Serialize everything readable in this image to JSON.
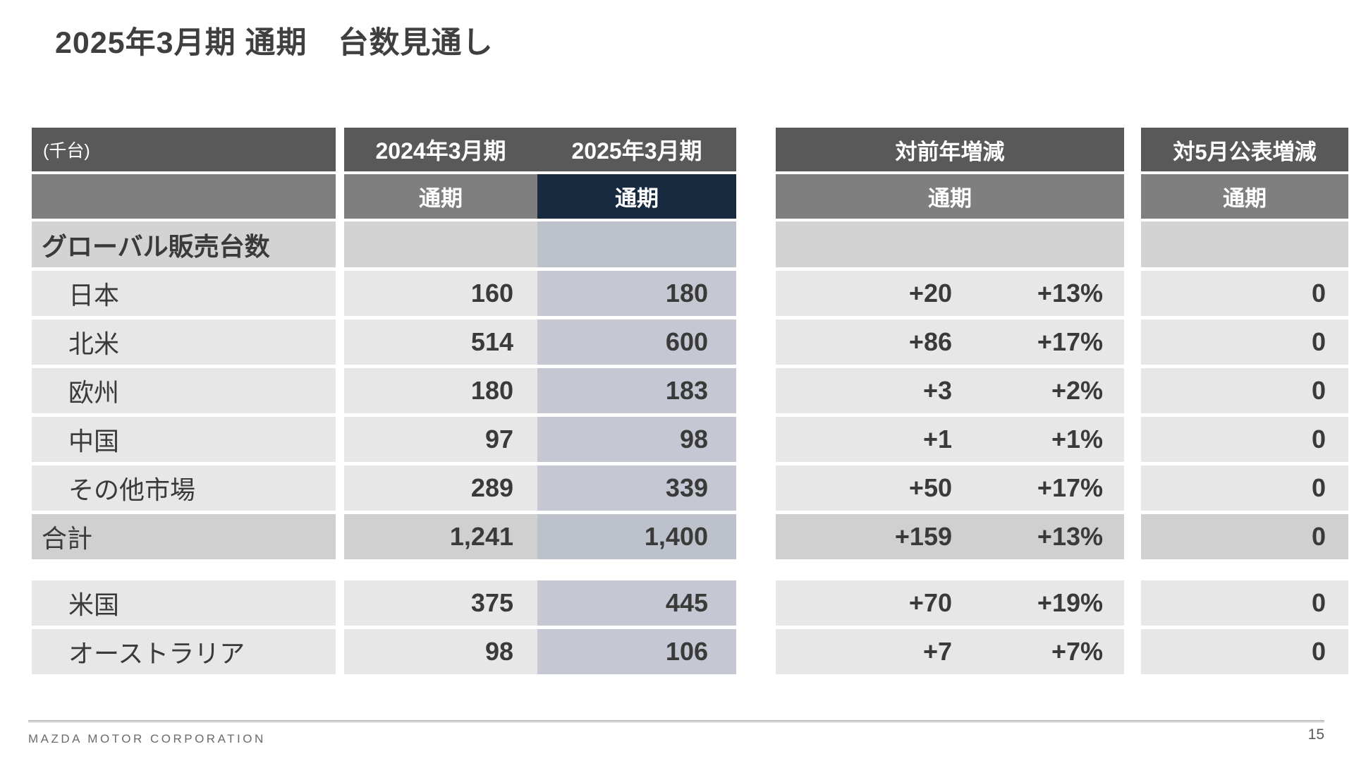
{
  "slide": {
    "title": "2025年3月期 通期　台数見通し",
    "footer": "MAZDA MOTOR CORPORATION",
    "page_number": "15"
  },
  "table": {
    "unit_label": "(千台)",
    "col_2024": "2024年3月期",
    "col_2025": "2025年3月期",
    "col_yoy": "対前年増減",
    "col_vs_may": "対5月公表増減",
    "subheader": "通期",
    "section_label": "グローバル販売台数",
    "rows": [
      {
        "label": "日本",
        "fy2024": "160",
        "fy2025": "180",
        "yoy": "+20",
        "yoy_pct": "+13%",
        "vs_may": "0"
      },
      {
        "label": "北米",
        "fy2024": "514",
        "fy2025": "600",
        "yoy": "+86",
        "yoy_pct": "+17%",
        "vs_may": "0"
      },
      {
        "label": "欧州",
        "fy2024": "180",
        "fy2025": "183",
        "yoy": "+3",
        "yoy_pct": "+2%",
        "vs_may": "0"
      },
      {
        "label": "中国",
        "fy2024": "97",
        "fy2025": "98",
        "yoy": "+1",
        "yoy_pct": "+1%",
        "vs_may": "0"
      },
      {
        "label": "その他市場",
        "fy2024": "289",
        "fy2025": "339",
        "yoy": "+50",
        "yoy_pct": "+17%",
        "vs_may": "0"
      },
      {
        "label": "合計",
        "fy2024": "1,241",
        "fy2025": "1,400",
        "yoy": "+159",
        "yoy_pct": "+13%",
        "vs_may": "0"
      }
    ],
    "extra_rows": [
      {
        "label": "米国",
        "fy2024": "375",
        "fy2025": "445",
        "yoy": "+70",
        "yoy_pct": "+19%",
        "vs_may": "0"
      },
      {
        "label": "オーストラリア",
        "fy2024": "98",
        "fy2025": "106",
        "yoy": "+7",
        "yoy_pct": "+7%",
        "vs_may": "0"
      }
    ]
  },
  "colors": {
    "header_dark": "#595959",
    "header_mid": "#7f7f7f",
    "accent_navy": "#172a40",
    "row_light": "#e8e7e7",
    "row_section": "#d4d3d3",
    "row_total": "#d1d0d0",
    "col2025_tint": "#c5c8d2",
    "text_dark": "#3a3a3a"
  }
}
